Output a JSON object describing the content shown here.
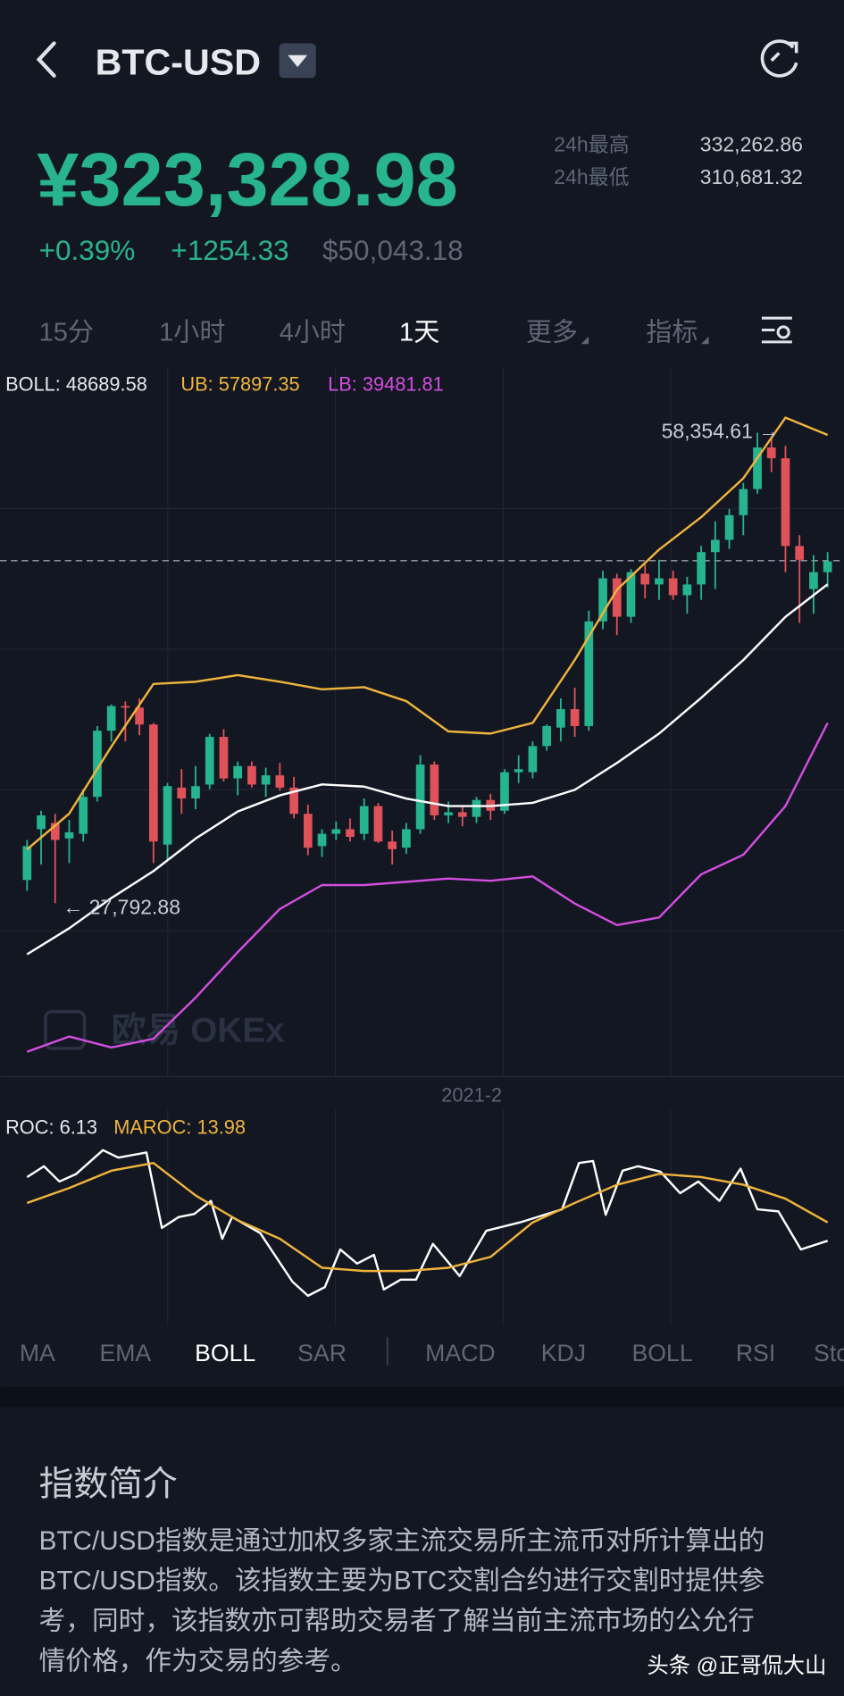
{
  "header": {
    "title": "BTC-USD"
  },
  "price": {
    "value": "¥323,328.98",
    "change_pct": "+0.39%",
    "change": "+1254.33",
    "usd": "$50,043.18",
    "high_label": "24h最高",
    "high": "332,262.86",
    "low_label": "24h最低",
    "low": "310,681.32"
  },
  "intervals": {
    "items": [
      "15分",
      "1小时",
      "4小时",
      "1天",
      "更多",
      "指标"
    ],
    "active": 3
  },
  "kline": {
    "legend": {
      "boll": "BOLL: 48689.58",
      "ub": "UB: 57897.35",
      "lb": "LB: 39481.81"
    },
    "ylim": [
      16880,
      62220
    ],
    "last_price": 50043.18,
    "colors": {
      "up": "#26b48f",
      "down": "#e0525a",
      "ub": "#f0b43c",
      "mb": "#ffffff",
      "lb": "#d24ee0"
    },
    "candles": [
      [
        29300,
        31900,
        28600,
        31500
      ],
      [
        32600,
        33800,
        30300,
        33500
      ],
      [
        33000,
        33600,
        27793,
        31900
      ],
      [
        32000,
        33200,
        30400,
        32400
      ],
      [
        32300,
        35200,
        31800,
        34700
      ],
      [
        34700,
        39300,
        34400,
        39000
      ],
      [
        39000,
        40700,
        38300,
        40600
      ],
      [
        40600,
        40900,
        38300,
        40500
      ],
      [
        40500,
        41100,
        38700,
        39400
      ],
      [
        39400,
        39500,
        30400,
        31800
      ],
      [
        31600,
        35600,
        30600,
        35400
      ],
      [
        35300,
        36500,
        33600,
        34600
      ],
      [
        34600,
        36700,
        33900,
        35400
      ],
      [
        35500,
        38800,
        35200,
        38600
      ],
      [
        38600,
        39100,
        35700,
        35900
      ],
      [
        35900,
        37000,
        34800,
        36700
      ],
      [
        36700,
        37000,
        35300,
        35500
      ],
      [
        35500,
        36600,
        34700,
        36100
      ],
      [
        36100,
        36900,
        35100,
        35300
      ],
      [
        35300,
        36000,
        33300,
        33600
      ],
      [
        33600,
        34200,
        30900,
        31400
      ],
      [
        31500,
        32600,
        30800,
        32300
      ],
      [
        32300,
        33100,
        31900,
        32600
      ],
      [
        32600,
        33300,
        31800,
        32100
      ],
      [
        32300,
        34600,
        31900,
        34100
      ],
      [
        34100,
        34300,
        31700,
        31800
      ],
      [
        31800,
        32500,
        30300,
        31300
      ],
      [
        31400,
        33000,
        31000,
        32600
      ],
      [
        32600,
        37400,
        32300,
        36800
      ],
      [
        36800,
        37000,
        33200,
        33500
      ],
      [
        33500,
        34400,
        33000,
        33700
      ],
      [
        33700,
        34100,
        32800,
        33400
      ],
      [
        33400,
        34700,
        33000,
        34500
      ],
      [
        34500,
        34900,
        33200,
        33800
      ],
      [
        33800,
        36500,
        33600,
        36300
      ],
      [
        36300,
        37400,
        35600,
        36500
      ],
      [
        36300,
        38300,
        35900,
        38000
      ],
      [
        38000,
        39400,
        37700,
        39300
      ],
      [
        39200,
        41100,
        38300,
        40400
      ],
      [
        40400,
        41800,
        38600,
        39300
      ],
      [
        39300,
        46800,
        39000,
        46100
      ],
      [
        46100,
        49400,
        45600,
        48900
      ],
      [
        48900,
        49200,
        45200,
        46400
      ],
      [
        46400,
        49500,
        46000,
        49300
      ],
      [
        49200,
        49800,
        47600,
        48500
      ],
      [
        48500,
        50100,
        47500,
        48900
      ],
      [
        48900,
        49400,
        47500,
        47800
      ],
      [
        47800,
        49000,
        46600,
        48500
      ],
      [
        48500,
        51000,
        47500,
        50600
      ],
      [
        50600,
        52600,
        48200,
        51400
      ],
      [
        51400,
        53400,
        50800,
        53000
      ],
      [
        53000,
        55100,
        51700,
        54700
      ],
      [
        54700,
        58355,
        54400,
        57400
      ],
      [
        57400,
        58100,
        55800,
        56700
      ],
      [
        56700,
        57500,
        49300,
        51000
      ],
      [
        51000,
        51700,
        46000,
        50100
      ],
      [
        48200,
        50400,
        46600,
        49300
      ],
      [
        49300,
        50600,
        48300,
        50000
      ]
    ],
    "x": [
      0,
      3,
      6,
      9,
      12,
      15,
      18,
      21,
      24,
      27,
      30,
      33,
      36,
      39,
      42,
      45,
      48,
      51,
      54,
      57
    ],
    "ub": [
      31290,
      33610,
      37970,
      42040,
      42180,
      42610,
      42180,
      41690,
      41830,
      40920,
      38950,
      38810,
      39510,
      43590,
      48160,
      50760,
      52870,
      55400,
      59340,
      58210
    ],
    "mb": [
      24470,
      26160,
      28125,
      29880,
      31990,
      33750,
      34800,
      35510,
      35370,
      34590,
      34100,
      34100,
      34310,
      35160,
      36910,
      38810,
      41130,
      43590,
      46400,
      48510
    ],
    "lb": [
      18140,
      19130,
      18420,
      18990,
      21660,
      24610,
      27420,
      28970,
      28970,
      29180,
      29390,
      29250,
      29530,
      27770,
      26370,
      26860,
      29670,
      30940,
      34100,
      39510
    ],
    "max_label": "58,354.61 →",
    "min_label": "← 27,792.88",
    "date_label": "2021-2",
    "watermark": "欧易 OKEx"
  },
  "roc": {
    "legend": {
      "roc": "ROC: 6.13",
      "maroc": "MAROC: 13.98"
    },
    "ylim": [
      -25,
      50
    ],
    "colors": {
      "roc": "#ffffff",
      "maroc": "#f0b43c"
    },
    "roc_x": [
      0,
      1.2,
      2.3,
      3.5,
      5.4,
      6.5,
      8.5,
      9.6,
      10.8,
      11.9,
      13.1,
      13.9,
      14.6,
      16.6,
      18.9,
      20,
      21.2,
      22.3,
      23.5,
      24.7,
      25.4,
      26.6,
      27.7,
      28.9,
      30.8,
      32.7,
      35.1,
      36.6,
      38.1,
      39.3,
      40.3,
      41.2,
      42.4,
      43.5,
      45.1,
      46.5,
      47.8,
      49.3,
      50.8,
      52,
      53.5,
      55.1,
      57
    ],
    "roc": [
      33.4,
      38,
      31.5,
      34.7,
      44.9,
      41.7,
      43.9,
      11.6,
      16.3,
      17.6,
      23.2,
      7,
      16.3,
      9.4,
      -11.4,
      -17.4,
      -13.7,
      2.4,
      -3.6,
      0.1,
      -14.7,
      -10.5,
      -10.5,
      4.8,
      -9,
      10.4,
      14,
      16.8,
      19.6,
      39.4,
      40.3,
      17.2,
      36.1,
      38,
      35.7,
      26.5,
      31.5,
      23.2,
      37,
      19.6,
      18.7,
      2.4,
      6.13
    ],
    "maroc_x": [
      0,
      3,
      6,
      9,
      12,
      15,
      18,
      21,
      24,
      27,
      30,
      33,
      36,
      39,
      42,
      45,
      48,
      51,
      54,
      57
    ],
    "maroc": [
      22.3,
      28.7,
      36.1,
      39.4,
      25.5,
      14.9,
      7,
      -5.4,
      -6.8,
      -6.8,
      -5.4,
      -0.8,
      14,
      22.3,
      30.1,
      34.7,
      33.4,
      30.1,
      24.1,
      13.98
    ]
  },
  "tabs": {
    "main": [
      "MA",
      "EMA",
      "BOLL",
      "SAR"
    ],
    "sub": [
      "MACD",
      "KDJ",
      "BOLL",
      "RSI",
      "Sto"
    ],
    "active_main": 2
  },
  "intro": {
    "title": "指数简介",
    "lines": [
      "BTC/USD指数是通过加权多家主流交易所主流币对所计算出的",
      "BTC/USD指数。该指数主要为BTC交割合约进行交割时提供参",
      "考，同时，该指数亦可帮助交易者了解当前主流市场的公允行",
      "情价格，作为交易的参考。"
    ]
  },
  "footer": "头条 @正哥侃大山"
}
